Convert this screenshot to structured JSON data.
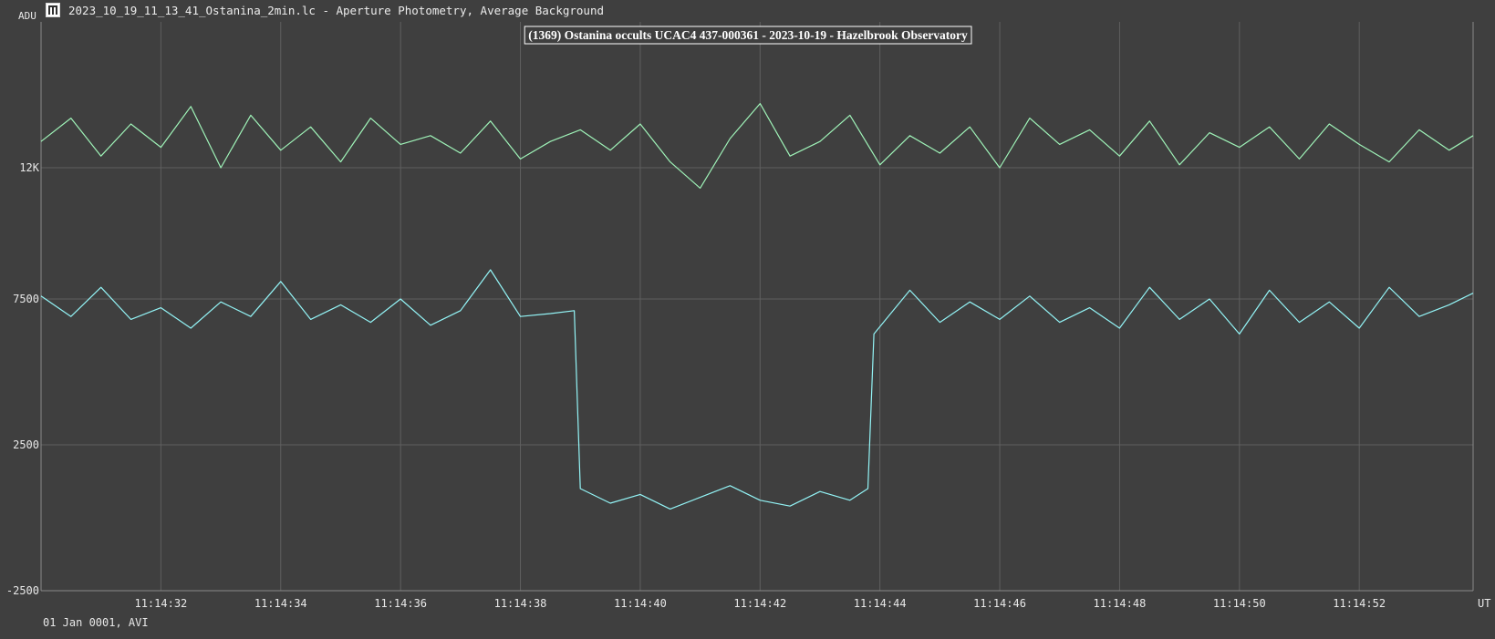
{
  "window": {
    "title": "2023_10_19_11_13_41_Ostanina_2min.lc - Aperture Photometry, Average Background",
    "icon": "lightcurve-app-icon"
  },
  "footer": {
    "date_source": "01 Jan 0001, AVI"
  },
  "colors": {
    "background": "#3f3f3f",
    "grid": "#5f5f5f",
    "comparison_series": "#9ff3b8",
    "target_series": "#93f4f6",
    "text": "#e8e8e8"
  },
  "chart_data": {
    "type": "line",
    "title": "(1369) Ostanina occults UCAC4 437-000361 - 2023-10-19 - Hazelbrook Observatory",
    "ylabel": "ADU",
    "xlabel": "UT",
    "ylim": [
      -2500,
      17000
    ],
    "xlim": [
      "11:14:30.0",
      "11:14:53.9"
    ],
    "y_ticks": [
      -2500,
      2500,
      7500,
      12000
    ],
    "y_tick_labels": [
      "-2500",
      "2500",
      "7500",
      "12K"
    ],
    "x_ticks": [
      "11:14:32",
      "11:14:34",
      "11:14:36",
      "11:14:38",
      "11:14:40",
      "11:14:42",
      "11:14:44",
      "11:14:46",
      "11:14:48",
      "11:14:50",
      "11:14:52"
    ],
    "grid": true,
    "legend": "none",
    "series": [
      {
        "x": [
          "11:14:30.0",
          "11:14:30.5",
          "11:14:31.0",
          "11:14:31.5",
          "11:14:32.0",
          "11:14:32.5",
          "11:14:33.0",
          "11:14:33.5",
          "11:14:34.0",
          "11:14:34.5",
          "11:14:35.0",
          "11:14:35.5",
          "11:14:36.0",
          "11:14:36.5",
          "11:14:37.0",
          "11:14:37.5",
          "11:14:38.0",
          "11:14:38.5",
          "11:14:39.0",
          "11:14:39.5",
          "11:14:40.0",
          "11:14:40.5",
          "11:14:41.0",
          "11:14:41.5",
          "11:14:42.0",
          "11:14:42.5",
          "11:14:43.0",
          "11:14:43.5",
          "11:14:44.0",
          "11:14:44.5",
          "11:14:45.0",
          "11:14:45.5",
          "11:14:46.0",
          "11:14:46.5",
          "11:14:47.0",
          "11:14:47.5",
          "11:14:48.0",
          "11:14:48.5",
          "11:14:49.0",
          "11:14:49.5",
          "11:14:50.0",
          "11:14:50.5",
          "11:14:51.0",
          "11:14:51.5",
          "11:14:52.0",
          "11:14:52.5",
          "11:14:53.0",
          "11:14:53.5",
          "11:14:53.9"
        ],
        "y": [
          12900,
          13700,
          12400,
          13500,
          12700,
          14100,
          12000,
          13800,
          12600,
          13400,
          12200,
          13700,
          12800,
          13100,
          12500,
          13600,
          12300,
          12900,
          13300,
          12600,
          13500,
          12200,
          11300,
          13000,
          14200,
          12400,
          12900,
          13800,
          12100,
          13100,
          12500,
          13400,
          12000,
          13700,
          12800,
          13300,
          12400,
          13600,
          12100,
          13200,
          12700,
          13400,
          12300,
          13500,
          12800,
          12200,
          13300,
          12600,
          13100
        ]
      },
      {
        "x": [
          "11:14:30.0",
          "11:14:30.5",
          "11:14:31.0",
          "11:14:31.5",
          "11:14:32.0",
          "11:14:32.5",
          "11:14:33.0",
          "11:14:33.5",
          "11:14:34.0",
          "11:14:34.5",
          "11:14:35.0",
          "11:14:35.5",
          "11:14:36.0",
          "11:14:36.5",
          "11:14:37.0",
          "11:14:37.5",
          "11:14:38.0",
          "11:14:38.5",
          "11:14:38.9",
          "11:14:39.0",
          "11:14:39.5",
          "11:14:40.0",
          "11:14:40.5",
          "11:14:41.0",
          "11:14:41.5",
          "11:14:42.0",
          "11:14:42.5",
          "11:14:43.0",
          "11:14:43.5",
          "11:14:43.8",
          "11:14:43.9",
          "11:14:44.5",
          "11:14:45.0",
          "11:14:45.5",
          "11:14:46.0",
          "11:14:46.5",
          "11:14:47.0",
          "11:14:47.5",
          "11:14:48.0",
          "11:14:48.5",
          "11:14:49.0",
          "11:14:49.5",
          "11:14:50.0",
          "11:14:50.5",
          "11:14:51.0",
          "11:14:51.5",
          "11:14:52.0",
          "11:14:52.5",
          "11:14:53.0",
          "11:14:53.5",
          "11:14:53.9"
        ],
        "y": [
          7600,
          6900,
          7900,
          6800,
          7200,
          6500,
          7400,
          6900,
          8100,
          6800,
          7300,
          6700,
          7500,
          6600,
          7100,
          8500,
          6900,
          7000,
          7100,
          1000,
          500,
          800,
          300,
          700,
          1100,
          600,
          400,
          900,
          600,
          1000,
          6300,
          7800,
          6700,
          7400,
          6800,
          7600,
          6700,
          7200,
          6500,
          7900,
          6800,
          7500,
          6300,
          7800,
          6700,
          7400,
          6500,
          7900,
          6900,
          7300,
          7700
        ]
      }
    ]
  }
}
